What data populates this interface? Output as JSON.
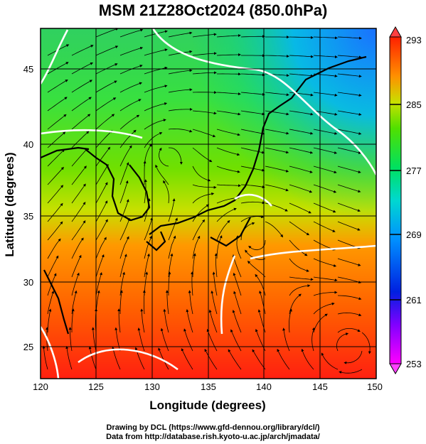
{
  "title": "MSM 21Z28Oct2024 (850.0hPa)",
  "map": {
    "x_axis_label": "Longitude (degrees)",
    "y_axis_label": "Latitude  (degrees)",
    "lon_range": [
      120,
      150
    ],
    "lat_range": [
      22.5,
      48
    ],
    "lon_ticks": [
      "120",
      "125",
      "130",
      "135",
      "140",
      "145",
      "150"
    ],
    "lat_ticks": [
      "25",
      "30",
      "35",
      "40",
      "45"
    ],
    "grid": true,
    "field": "temperature (shaded) with wind streamlines",
    "colorbar": {
      "position": "right",
      "range": [
        253,
        293
      ],
      "ticks": [
        "293",
        "285",
        "277",
        "269",
        "261",
        "253"
      ],
      "colors": [
        "#ff00ff",
        "#0030ff",
        "#00c8ff",
        "#00e070",
        "#60e000",
        "#d8e000",
        "#ff8000",
        "#ff2000"
      ]
    }
  },
  "footer": {
    "line1": "Drawing by DCL (https://www.gfd-dennou.org/library/dcl/)",
    "line2": "Data from http://database.rish.kyoto-u.ac.jp/arch/jmadata/"
  }
}
